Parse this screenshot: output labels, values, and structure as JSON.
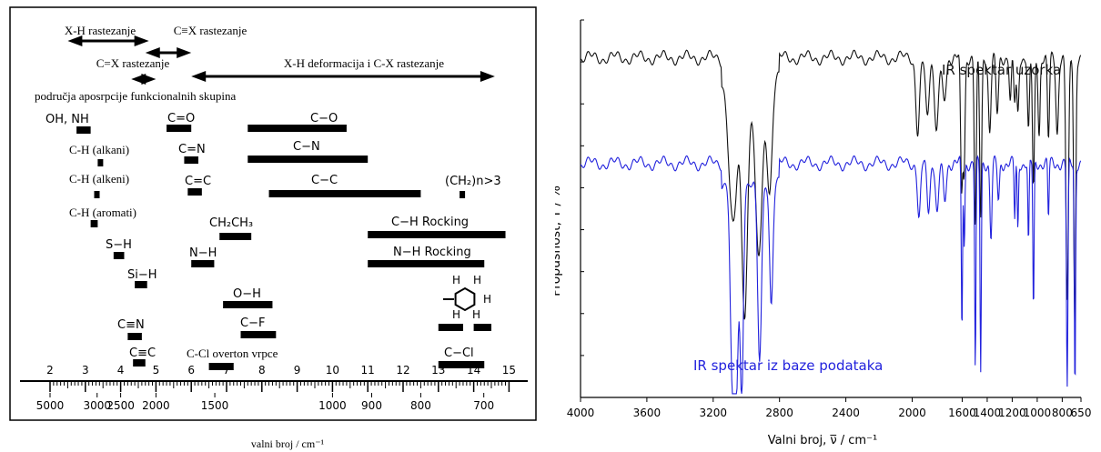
{
  "chart_data": [
    {
      "type": "correlation-chart",
      "xlabel": "valni broj / cm⁻¹",
      "wavelength_ticks": [
        "2",
        "3",
        "4",
        "5",
        "6",
        "7",
        "8",
        "9",
        "10",
        "11",
        "12",
        "13",
        "14",
        "15"
      ],
      "wavenumber_ticks": [
        "5000",
        "3000",
        "2500",
        "2000",
        "1500",
        "1000",
        "900",
        "800",
        "700"
      ],
      "arrows": [
        {
          "label": "X-H rastezanje",
          "from": 2.5,
          "to": 4.8
        },
        {
          "label": "C≡X rastezanje",
          "from": 4.7,
          "to": 6.0
        },
        {
          "label": "C=X rastezanje",
          "from": 4.3,
          "to": 5.0
        },
        {
          "label": "X-H deformacija i C-X rastezanje",
          "from": 6.0,
          "to": 14.6
        }
      ],
      "region_caption": "područja aposrpcije funkcionalnih skupina",
      "bands": [
        {
          "label": "OH, NH",
          "from": 2.75,
          "to": 3.15
        },
        {
          "label": "C-H (alkani)",
          "from": 3.35,
          "to": 3.5
        },
        {
          "label": "C-H (alkeni)",
          "from": 3.25,
          "to": 3.35
        },
        {
          "label": "C-H (aromati)",
          "from": 3.15,
          "to": 3.35
        },
        {
          "label": "S−H",
          "from": 3.8,
          "to": 4.1
        },
        {
          "label": "Si−H",
          "from": 4.4,
          "to": 4.75
        },
        {
          "label": "C≡N",
          "from": 4.2,
          "to": 4.6
        },
        {
          "label": "C≡C",
          "from": 4.35,
          "to": 4.7
        },
        {
          "label": "C=O",
          "from": 5.3,
          "to": 6.0
        },
        {
          "label": "C=N",
          "from": 5.8,
          "to": 6.2
        },
        {
          "label": "C=C",
          "from": 5.9,
          "to": 6.3
        },
        {
          "label": "N−H",
          "from": 6.0,
          "to": 6.65
        },
        {
          "label": "CH₂CH₃",
          "from": 6.8,
          "to": 7.7
        },
        {
          "label": "O−H",
          "from": 6.9,
          "to": 8.3
        },
        {
          "label": "C−F",
          "from": 7.4,
          "to": 8.4
        },
        {
          "label": "C-Cl overton vrpce",
          "from": 6.5,
          "to": 7.2
        },
        {
          "label": "C−O",
          "from": 7.6,
          "to": 10.4
        },
        {
          "label": "C−N",
          "from": 7.6,
          "to": 11.0
        },
        {
          "label": "C−C",
          "from": 8.2,
          "to": 12.5
        },
        {
          "label": "(CH₂)n>3",
          "from": 13.6,
          "to": 13.75
        },
        {
          "label": "C−H Rocking",
          "from": 11.0,
          "to": 14.9
        },
        {
          "label": "N−H Rocking",
          "from": 11.0,
          "to": 14.3
        },
        {
          "label": "",
          "from": 13.0,
          "to": 13.7
        },
        {
          "label": "",
          "from": 14.0,
          "to": 14.5
        },
        {
          "label": "C−Cl",
          "from": 13.0,
          "to": 14.3
        }
      ],
      "aromatic_H": [
        "H",
        "H",
        "H",
        "H",
        "H"
      ]
    },
    {
      "type": "line",
      "xlabel": "Valni broj, ν̅ / cm⁻¹",
      "ylabel": "Propusnost, T / %",
      "xlim": [
        4000,
        650
      ],
      "x_ticks": [
        "4000",
        "3600",
        "3200",
        "2800",
        "2400",
        "2000",
        "1600",
        "1400",
        "1200",
        "1000",
        "800",
        "650"
      ],
      "series": [
        {
          "name": "IR spektar uzorka",
          "color": "#111111",
          "baseline": 0.9,
          "peaks": [
            [
              3080,
              0.4,
              25
            ],
            [
              3010,
              0.62,
              18
            ],
            [
              2925,
              0.48,
              22
            ],
            [
              2860,
              0.3,
              15
            ],
            [
              1955,
              0.2,
              15
            ],
            [
              1880,
              0.15,
              15
            ],
            [
              1805,
              0.2,
              15
            ],
            [
              1745,
              0.12,
              15
            ],
            [
              1605,
              0.35,
              8
            ],
            [
              1585,
              0.3,
              8
            ],
            [
              1495,
              0.45,
              8
            ],
            [
              1452,
              0.42,
              8
            ],
            [
              1380,
              0.2,
              10
            ],
            [
              1320,
              0.15,
              10
            ],
            [
              1215,
              0.12,
              8
            ],
            [
              1180,
              0.12,
              8
            ],
            [
              1155,
              0.15,
              8
            ],
            [
              1070,
              0.2,
              8
            ],
            [
              1030,
              0.35,
              8
            ],
            [
              985,
              0.2,
              8
            ],
            [
              910,
              0.22,
              8
            ],
            [
              840,
              0.2,
              10
            ],
            [
              760,
              0.65,
              10
            ],
            [
              700,
              0.7,
              8
            ]
          ]
        },
        {
          "name": "IR spektar iz baze podataka",
          "color": "#2222dd",
          "baseline": 0.62,
          "peaks": [
            [
              3085,
              0.52,
              12
            ],
            [
              3060,
              0.54,
              12
            ],
            [
              3028,
              0.56,
              10
            ],
            [
              2920,
              0.48,
              12
            ],
            [
              2850,
              0.32,
              10
            ],
            [
              1945,
              0.15,
              12
            ],
            [
              1870,
              0.12,
              12
            ],
            [
              1800,
              0.14,
              12
            ],
            [
              1740,
              0.1,
              12
            ],
            [
              1602,
              0.45,
              5
            ],
            [
              1583,
              0.22,
              5
            ],
            [
              1495,
              0.55,
              5
            ],
            [
              1452,
              0.55,
              5
            ],
            [
              1370,
              0.2,
              8
            ],
            [
              1310,
              0.1,
              8
            ],
            [
              1180,
              0.15,
              5
            ],
            [
              1155,
              0.18,
              5
            ],
            [
              1070,
              0.22,
              5
            ],
            [
              1030,
              0.4,
              5
            ],
            [
              910,
              0.15,
              5
            ],
            [
              760,
              0.6,
              6
            ],
            [
              698,
              0.6,
              5
            ]
          ]
        }
      ]
    }
  ]
}
